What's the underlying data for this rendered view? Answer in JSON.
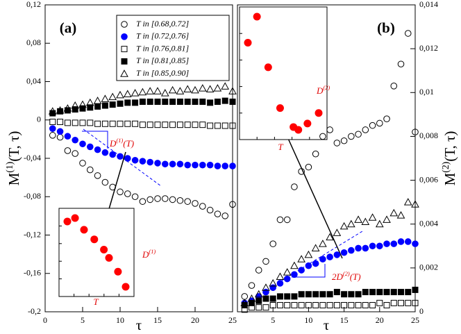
{
  "chart_data": [
    {
      "type": "scatter",
      "panel_label": "(a)",
      "xlabel": "τ",
      "ylabel": {
        "base": "M",
        "sup": "(1)",
        "rest": "(T, τ)"
      },
      "xlim": [
        0,
        25
      ],
      "xticks": [
        0,
        5,
        10,
        15,
        20,
        25
      ],
      "ylim": [
        -0.2,
        0.12
      ],
      "yticks": [
        {
          "value": -0.2,
          "label": "-0,2"
        },
        {
          "value": -0.16,
          "label": "-0,16"
        },
        {
          "value": -0.12,
          "label": "-0,12"
        },
        {
          "value": -0.08,
          "label": "-0,08"
        },
        {
          "value": -0.04,
          "label": "-0,04"
        },
        0,
        {
          "value": 0.04,
          "label": "0,04"
        },
        {
          "value": 0.08,
          "label": "0,08"
        },
        {
          "value": 0.12,
          "label": "0,12"
        }
      ],
      "x": [
        1,
        2,
        3,
        4,
        5,
        6,
        7,
        8,
        9,
        10,
        11,
        12,
        13,
        14,
        15,
        16,
        17,
        18,
        19,
        20,
        21,
        22,
        23,
        24,
        25
      ],
      "series": [
        {
          "name": "T in [0.68,0.72]",
          "marker": "circle",
          "filled": false,
          "color": "#000000",
          "values": [
            -0.016,
            -0.018,
            -0.032,
            -0.035,
            -0.045,
            -0.052,
            -0.058,
            -0.065,
            -0.07,
            -0.075,
            -0.077,
            -0.08,
            -0.085,
            -0.083,
            -0.082,
            -0.082,
            -0.083,
            -0.084,
            -0.085,
            -0.087,
            -0.09,
            -0.094,
            -0.098,
            -0.1,
            -0.088
          ]
        },
        {
          "name": "T in [0.72,0.76]",
          "marker": "circle",
          "filled": true,
          "color": "#0000ff",
          "values": [
            -0.009,
            -0.012,
            -0.017,
            -0.021,
            -0.025,
            -0.028,
            -0.031,
            -0.034,
            -0.036,
            -0.038,
            -0.04,
            -0.042,
            -0.043,
            -0.044,
            -0.045,
            -0.046,
            -0.046,
            -0.046,
            -0.047,
            -0.047,
            -0.047,
            -0.047,
            -0.048,
            -0.048,
            -0.048
          ]
        },
        {
          "name": "T in [0.76,0.81]",
          "marker": "square",
          "filled": false,
          "color": "#000000",
          "values": [
            -0.002,
            -0.002,
            -0.003,
            -0.003,
            -0.003,
            -0.003,
            -0.004,
            -0.004,
            -0.004,
            -0.004,
            -0.004,
            -0.004,
            -0.005,
            -0.005,
            -0.005,
            -0.005,
            -0.005,
            -0.005,
            -0.005,
            -0.005,
            -0.005,
            -0.006,
            -0.006,
            -0.006,
            -0.006
          ]
        },
        {
          "name": "T in [0.81,0.85]",
          "marker": "square",
          "filled": true,
          "color": "#000000",
          "values": [
            0.007,
            0.009,
            0.01,
            0.011,
            0.012,
            0.013,
            0.014,
            0.015,
            0.016,
            0.017,
            0.018,
            0.018,
            0.019,
            0.019,
            0.019,
            0.019,
            0.019,
            0.019,
            0.019,
            0.019,
            0.019,
            0.018,
            0.019,
            0.02,
            0.019
          ]
        },
        {
          "name": "T in [0.85,0.90]",
          "marker": "triangle",
          "filled": false,
          "color": "#000000",
          "values": [
            0.009,
            0.01,
            0.012,
            0.015,
            0.016,
            0.018,
            0.02,
            0.022,
            0.024,
            0.026,
            0.027,
            0.028,
            0.029,
            0.03,
            0.03,
            0.028,
            0.031,
            0.03,
            0.032,
            0.031,
            0.033,
            0.032,
            0.033,
            0.035,
            0.03
          ]
        }
      ],
      "annotation": {
        "base": "D",
        "sup": "(1)",
        "rest": "(T)"
      },
      "inset": {
        "type": "scatter",
        "xlabel": "T",
        "ylabel": {
          "base": "D",
          "sup": "(1)",
          "rest": ""
        },
        "color": "#ff0000",
        "x": [
          1.2,
          2.4,
          3.8,
          5.4,
          6.9,
          7.7,
          9.1,
          10.3
        ],
        "values": [
          1.09,
          1.14,
          0.97,
          0.83,
          0.68,
          0.56,
          0.36,
          0.14
        ]
      }
    },
    {
      "type": "scatter",
      "panel_label": "(b)",
      "xlabel": "τ",
      "ylabel": {
        "base": "M",
        "sup": "(2)",
        "rest": "(T, τ)"
      },
      "xlim": [
        0,
        25
      ],
      "xticks": [
        5,
        10,
        15,
        20,
        25
      ],
      "ylim": [
        0,
        0.014
      ],
      "yticks": [
        0,
        {
          "value": 0.002,
          "label": "0,002"
        },
        {
          "value": 0.004,
          "label": "0,004"
        },
        {
          "value": 0.006,
          "label": "0,006"
        },
        {
          "value": 0.008,
          "label": "0,008"
        },
        {
          "value": 0.01,
          "label": "0,01"
        },
        {
          "value": 0.012,
          "label": "0,012"
        },
        {
          "value": 0.014,
          "label": "0,014"
        }
      ],
      "x": [
        1,
        2,
        3,
        4,
        5,
        6,
        7,
        8,
        9,
        10,
        11,
        12,
        13,
        14,
        15,
        16,
        17,
        18,
        19,
        20,
        21,
        22,
        23,
        24,
        25
      ],
      "series": [
        {
          "name": "T in [0.68,0.72]",
          "marker": "circle",
          "filled": false,
          "color": "#000000",
          "values": [
            0.0007,
            0.0012,
            0.0019,
            0.0023,
            0.0031,
            0.0042,
            0.0042,
            0.0057,
            0.0064,
            0.0066,
            0.0072,
            0.008,
            0.0083,
            0.0077,
            0.0078,
            0.008,
            0.0081,
            0.0083,
            0.0085,
            0.0086,
            0.0088,
            0.0103,
            0.0113,
            0.0127,
            0.0082
          ]
        },
        {
          "name": "T in [0.72,0.76]",
          "marker": "circle",
          "filled": true,
          "color": "#0000ff",
          "values": [
            0.0004,
            0.0005,
            0.0007,
            0.0009,
            0.0011,
            0.0013,
            0.0015,
            0.0017,
            0.0019,
            0.0021,
            0.0022,
            0.0024,
            0.0025,
            0.0026,
            0.0027,
            0.0028,
            0.0029,
            0.0029,
            0.003,
            0.003,
            0.0031,
            0.0031,
            0.0032,
            0.0032,
            0.0031
          ]
        },
        {
          "name": "T in [0.76,0.81]",
          "marker": "square",
          "filled": false,
          "color": "#000000",
          "values": [
            0.0001,
            0.0002,
            0.0002,
            0.0002,
            0.0003,
            0.0003,
            0.0003,
            0.0003,
            0.0003,
            0.0003,
            0.0003,
            0.0003,
            0.0003,
            0.0003,
            0.0003,
            0.0003,
            0.0003,
            0.0003,
            0.0003,
            0.0004,
            0.0003,
            0.0004,
            0.0004,
            0.0004,
            0.0004
          ]
        },
        {
          "name": "T in [0.81,0.85]",
          "marker": "square",
          "filled": true,
          "color": "#000000",
          "values": [
            0.0003,
            0.0004,
            0.0005,
            0.0006,
            0.0006,
            0.0007,
            0.0007,
            0.0007,
            0.0008,
            0.0008,
            0.0008,
            0.0008,
            0.0008,
            0.0009,
            0.0008,
            0.0008,
            0.0008,
            0.0009,
            0.0009,
            0.0009,
            0.0009,
            0.0009,
            0.0009,
            0.0009,
            0.001
          ]
        },
        {
          "name": "T in [0.85,0.90]",
          "marker": "triangle",
          "filled": false,
          "color": "#000000",
          "values": [
            0.0004,
            0.0006,
            0.0008,
            0.0011,
            0.0013,
            0.0016,
            0.0018,
            0.0021,
            0.0024,
            0.0026,
            0.0029,
            0.0031,
            0.0034,
            0.0036,
            0.0039,
            0.004,
            0.0042,
            0.0041,
            0.0043,
            0.004,
            0.0042,
            0.0045,
            0.0044,
            0.005,
            0.0049
          ]
        }
      ],
      "annotation": {
        "base": "2D",
        "sup": "(2)",
        "rest": "(T)"
      },
      "inset": {
        "type": "scatter",
        "xlabel": "T",
        "ylabel": {
          "base": "D",
          "sup": "(2)",
          "rest": ""
        },
        "color": "#ff0000",
        "x": [
          2.8,
          1.5,
          4.4,
          6.1,
          8.0,
          8.7,
          10.0,
          11.6
        ],
        "values": [
          1.64,
          1.27,
          0.92,
          0.34,
          0.07,
          0.03,
          0.12,
          0.27
        ]
      }
    }
  ]
}
